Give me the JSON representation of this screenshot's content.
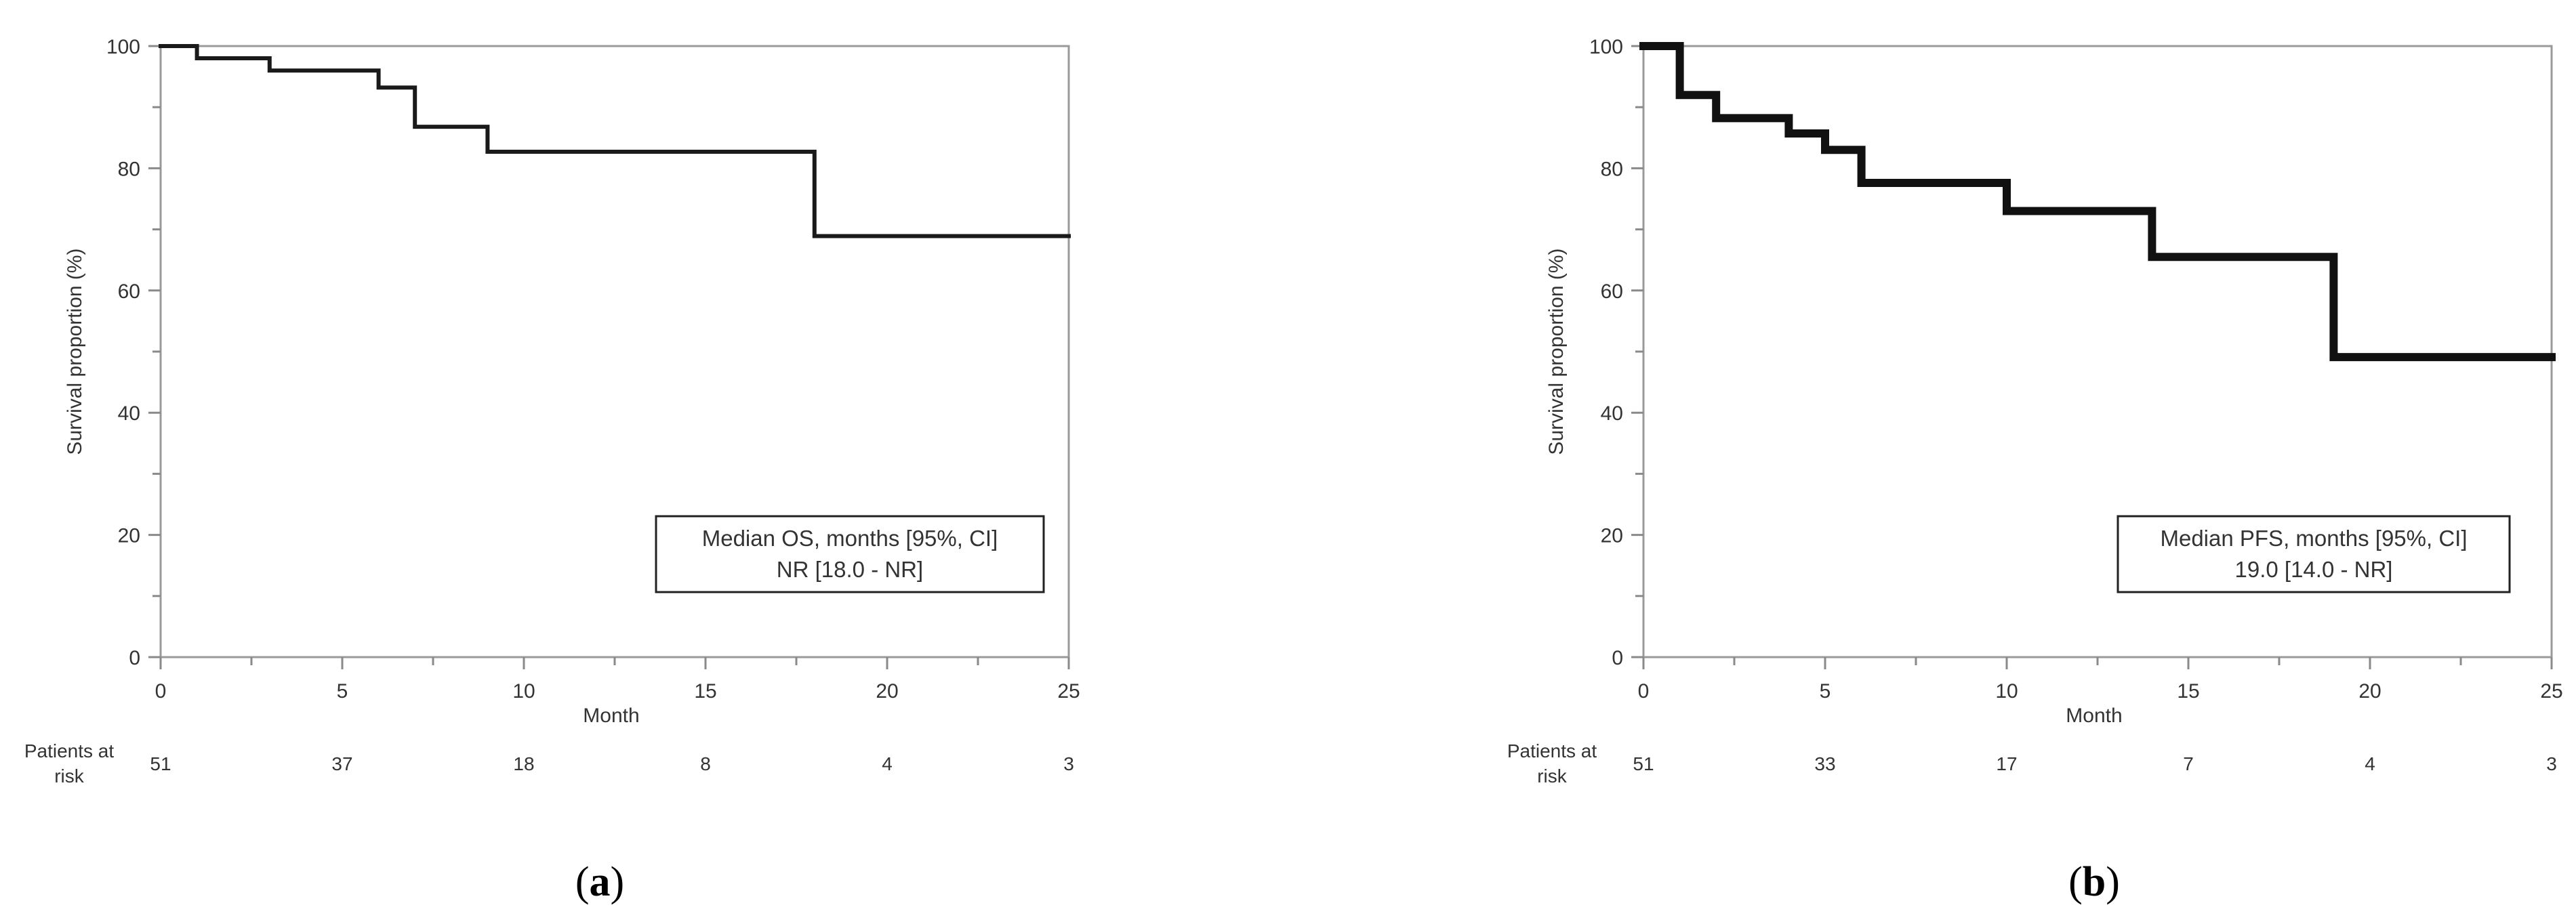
{
  "chart_data": [
    {
      "type": "line",
      "panel_label": "a",
      "ylabel": "Survival proportion (%)",
      "xlabel": "Month",
      "xlim": [
        0,
        25
      ],
      "ylim": [
        0,
        100
      ],
      "x_ticks": [
        0,
        5,
        10,
        15,
        20,
        25
      ],
      "y_ticks": [
        0,
        20,
        40,
        60,
        80,
        100
      ],
      "grid": false,
      "series": [
        {
          "x": [
            0,
            1,
            1,
            3,
            3,
            6,
            6,
            7,
            7,
            9,
            9,
            18,
            18,
            25
          ],
          "y": [
            100,
            100,
            98,
            98,
            96,
            96,
            93.2,
            93.2,
            86.8,
            86.8,
            82.7,
            82.7,
            68.9,
            68.9
          ],
          "color": "#1a1a1a",
          "style": "step"
        }
      ],
      "annotation": {
        "line1": "Median OS, months [95%, CI]",
        "line2": "NR [18.0 - NR]"
      },
      "risk_table": {
        "label_line1": "Patients at",
        "label_line2": "risk",
        "times": [
          0,
          5,
          10,
          15,
          20,
          25
        ],
        "counts": [
          "51",
          "37",
          "18",
          "8",
          "4",
          "3"
        ]
      }
    },
    {
      "type": "line",
      "panel_label": "b",
      "ylabel": "Survival proportion (%)",
      "xlabel": "Month",
      "xlim": [
        0,
        25
      ],
      "ylim": [
        0,
        100
      ],
      "x_ticks": [
        0,
        5,
        10,
        15,
        20,
        25
      ],
      "y_ticks": [
        0,
        20,
        40,
        60,
        80,
        100
      ],
      "grid": false,
      "series": [
        {
          "x": [
            0,
            1,
            1,
            2,
            2,
            4,
            4,
            5,
            5,
            6,
            6,
            10,
            10,
            14,
            14,
            19,
            19,
            25
          ],
          "y": [
            100,
            100,
            92,
            92,
            88.2,
            88.2,
            85.7,
            85.7,
            83,
            83,
            77.6,
            77.6,
            73,
            73,
            65.5,
            65.5,
            49.1,
            49.1
          ],
          "color": "#111111",
          "style": "step"
        }
      ],
      "annotation": {
        "line1": "Median PFS, months [95%, CI]",
        "line2": "19.0 [14.0 - NR]"
      },
      "risk_table": {
        "label_line1": "Patients at",
        "label_line2": "risk",
        "times": [
          0,
          5,
          10,
          15,
          20,
          25
        ],
        "counts": [
          "51",
          "33",
          "17",
          "7",
          "4",
          "3"
        ]
      }
    }
  ],
  "captions": [
    {
      "open": "(",
      "letter": "a",
      "close": ")"
    },
    {
      "open": "(",
      "letter": "b",
      "close": ")"
    }
  ]
}
